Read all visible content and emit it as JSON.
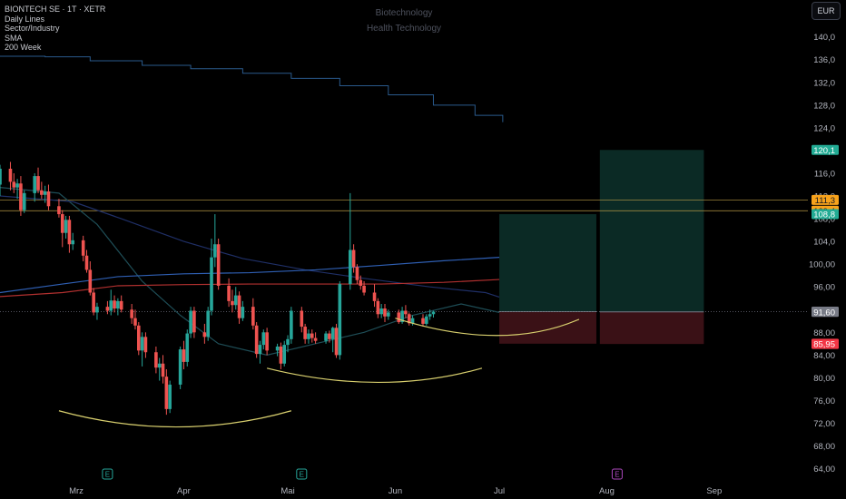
{
  "legend": {
    "symbol_line": "BIONTECH SE · 1T · XETR",
    "line2": "Daily Lines",
    "line3": "Sector/Industry",
    "line4": "SMA",
    "line5": "200 Week"
  },
  "watermark": {
    "sector": "Biotechnology",
    "industry": "Health Technology"
  },
  "currency_button": "EUR",
  "colors": {
    "bg": "#000000",
    "up": "#26a69a",
    "down": "#ef5350",
    "axis_text": "#b2b5be",
    "sma200w": "#2a5a8c",
    "blue_ma": "#2f5fb3",
    "red_ma": "#b0302f",
    "teal_ma": "#1e4d56",
    "navy_ma": "#1f2f66",
    "curve": "#d8cf6e",
    "hline": "#b89a46",
    "target": "#0b2a25",
    "stop": "#3a1116",
    "badge_teal": "#22ab94",
    "badge_orange": "#f7a21b",
    "badge_red": "#f23645",
    "badge_gray": "#787b86",
    "earn_green": "#26a69a",
    "earn_purple": "#ab47bc"
  },
  "chart_data": {
    "type": "candlestick",
    "y_ticks": [
      "140,0",
      "136,0",
      "132,0",
      "128,0",
      "124,0",
      "120,0",
      "116,0",
      "112,0",
      "108,0",
      "104,0",
      "100,00",
      "96,00",
      "92,00",
      "88,00",
      "84,00",
      "80,00",
      "76,00",
      "72,00",
      "68,00",
      "64,00"
    ],
    "y_tick_values": [
      140,
      136,
      132,
      128,
      124,
      120,
      116,
      112,
      108,
      104,
      100,
      96,
      92,
      88,
      84,
      80,
      76,
      72,
      68,
      64
    ],
    "ylim": [
      63.3,
      143.3
    ],
    "x_ticks": [
      "Mrz",
      "Apr",
      "Mai",
      "Jun",
      "Jul",
      "Aug",
      "Sep"
    ],
    "x_tick_dates": [
      "2025-03-01",
      "2025-04-01",
      "2025-05-01",
      "2025-06-01",
      "2025-07-01",
      "2025-08-01",
      "2025-09-01"
    ],
    "x_range": [
      "2025-02-07",
      "2025-09-28"
    ],
    "candles": [
      {
        "o": 114,
        "h": 117.5,
        "l": 112,
        "c": 116.8
      },
      {
        "o": 116.8,
        "h": 118,
        "l": 113,
        "c": 114.5
      },
      {
        "o": 114.5,
        "h": 116,
        "l": 112.5,
        "c": 113.5
      },
      {
        "o": 113.5,
        "h": 115,
        "l": 111.5,
        "c": 114.2
      },
      {
        "o": 114.2,
        "h": 115.5,
        "l": 108.5,
        "c": 109.5
      },
      {
        "o": 109.5,
        "h": 113,
        "l": 109,
        "c": 112.5
      },
      {
        "o": 112.5,
        "h": 116,
        "l": 111,
        "c": 115.5
      },
      {
        "o": 115.5,
        "h": 117,
        "l": 112.5,
        "c": 113
      },
      {
        "o": 113,
        "h": 114.5,
        "l": 111.5,
        "c": 112.2
      },
      {
        "o": 112.2,
        "h": 113.8,
        "l": 110.8,
        "c": 112.8
      },
      {
        "o": 112.8,
        "h": 114,
        "l": 109.5,
        "c": 110.2
      },
      {
        "o": 110.2,
        "h": 111.5,
        "l": 108.2,
        "c": 108.8
      },
      {
        "o": 108.8,
        "h": 109.5,
        "l": 103,
        "c": 105.5
      },
      {
        "o": 105.5,
        "h": 108.5,
        "l": 104.5,
        "c": 107.8
      },
      {
        "o": 107.8,
        "h": 108.5,
        "l": 102,
        "c": 103.5
      },
      {
        "o": 103.5,
        "h": 105.5,
        "l": 102.5,
        "c": 104.2
      },
      {
        "o": 104.2,
        "h": 105,
        "l": 100.5,
        "c": 101.5
      },
      {
        "o": 101.5,
        "h": 102.5,
        "l": 98.5,
        "c": 99
      },
      {
        "o": 99,
        "h": 100.5,
        "l": 94.5,
        "c": 95
      },
      {
        "o": 95,
        "h": 95.8,
        "l": 91,
        "c": 91.5
      },
      {
        "o": 91.5,
        "h": 93.2,
        "l": 90.2,
        "c": 92.5
      },
      {
        "o": 92.5,
        "h": 93.5,
        "l": 91.2,
        "c": 91.8
      },
      {
        "o": 91.8,
        "h": 95.5,
        "l": 91,
        "c": 93.6
      },
      {
        "o": 93.6,
        "h": 94.5,
        "l": 91.5,
        "c": 92.2
      },
      {
        "o": 92.2,
        "h": 94,
        "l": 91,
        "c": 93.5
      },
      {
        "o": 93.5,
        "h": 94.5,
        "l": 91.5,
        "c": 92
      },
      {
        "o": 92,
        "h": 93,
        "l": 89.5,
        "c": 90.5
      },
      {
        "o": 90.5,
        "h": 92,
        "l": 88.5,
        "c": 89.2
      },
      {
        "o": 89.2,
        "h": 89.8,
        "l": 84,
        "c": 84.8
      },
      {
        "o": 84.8,
        "h": 88,
        "l": 82,
        "c": 87.2
      },
      {
        "o": 87.2,
        "h": 88,
        "l": 83.5,
        "c": 84.5
      },
      {
        "o": 84.5,
        "h": 85.5,
        "l": 80.8,
        "c": 81.8
      },
      {
        "o": 81.8,
        "h": 83.5,
        "l": 79.5,
        "c": 82.5
      },
      {
        "o": 82.5,
        "h": 84,
        "l": 79,
        "c": 80.2
      },
      {
        "o": 80.2,
        "h": 81.5,
        "l": 73.5,
        "c": 74.5
      },
      {
        "o": 74.5,
        "h": 79.5,
        "l": 73.8,
        "c": 78.8
      },
      {
        "o": 78.8,
        "h": 85.5,
        "l": 78,
        "c": 85
      },
      {
        "o": 85,
        "h": 86.5,
        "l": 81.5,
        "c": 82.8
      },
      {
        "o": 82.8,
        "h": 88.5,
        "l": 82,
        "c": 87.8
      },
      {
        "o": 87.8,
        "h": 92.5,
        "l": 87,
        "c": 91.8
      },
      {
        "o": 91.8,
        "h": 92.5,
        "l": 87,
        "c": 88
      },
      {
        "o": 88,
        "h": 89.5,
        "l": 86,
        "c": 87.2
      },
      {
        "o": 87.2,
        "h": 92.5,
        "l": 86.5,
        "c": 91.8
      },
      {
        "o": 91.8,
        "h": 104.5,
        "l": 91,
        "c": 101.2
      },
      {
        "o": 101.2,
        "h": 108.8,
        "l": 99.5,
        "c": 103.5
      },
      {
        "o": 103.5,
        "h": 104.5,
        "l": 95.5,
        "c": 96.2
      },
      {
        "o": 96.2,
        "h": 97.5,
        "l": 92.5,
        "c": 93.5
      },
      {
        "o": 93.5,
        "h": 95.5,
        "l": 91.5,
        "c": 92.8
      },
      {
        "o": 92.8,
        "h": 96,
        "l": 92,
        "c": 94.5
      },
      {
        "o": 94.5,
        "h": 95.2,
        "l": 89.5,
        "c": 90.5
      },
      {
        "o": 90.5,
        "h": 93.5,
        "l": 90,
        "c": 92.5
      },
      {
        "o": 92.5,
        "h": 94,
        "l": 88.5,
        "c": 89.2
      },
      {
        "o": 89.2,
        "h": 89.8,
        "l": 83.5,
        "c": 84.2
      },
      {
        "o": 84.2,
        "h": 86.5,
        "l": 82.5,
        "c": 85.8
      },
      {
        "o": 85.8,
        "h": 88.5,
        "l": 85,
        "c": 88
      },
      {
        "o": 88,
        "h": 88.8,
        "l": 84,
        "c": 84.8
      },
      {
        "o": 84.8,
        "h": 86,
        "l": 83.8,
        "c": 85.5
      },
      {
        "o": 85.5,
        "h": 86.2,
        "l": 81.5,
        "c": 82.5
      },
      {
        "o": 82.5,
        "h": 86.5,
        "l": 82,
        "c": 85.8
      },
      {
        "o": 85.8,
        "h": 87.5,
        "l": 84.5,
        "c": 86.8
      },
      {
        "o": 86.8,
        "h": 92.5,
        "l": 86,
        "c": 91.8
      },
      {
        "o": 91.8,
        "h": 92.5,
        "l": 88,
        "c": 89
      },
      {
        "o": 89,
        "h": 89.5,
        "l": 86,
        "c": 86.8
      },
      {
        "o": 86.8,
        "h": 88.5,
        "l": 86,
        "c": 87.8
      },
      {
        "o": 87.8,
        "h": 88.5,
        "l": 86.2,
        "c": 87
      },
      {
        "o": 87,
        "h": 88,
        "l": 86,
        "c": 86.5
      },
      {
        "o": 86.5,
        "h": 88.2,
        "l": 86,
        "c": 87.8
      },
      {
        "o": 87.8,
        "h": 88.3,
        "l": 86.2,
        "c": 86.8
      },
      {
        "o": 86.8,
        "h": 89,
        "l": 84.5,
        "c": 88.8
      },
      {
        "o": 88.8,
        "h": 89.5,
        "l": 83.5,
        "c": 84
      },
      {
        "o": 84,
        "h": 97,
        "l": 83.2,
        "c": 96.5
      },
      {
        "o": 96.5,
        "h": 112.5,
        "l": 95.5,
        "c": 102.5
      },
      {
        "o": 102.5,
        "h": 103.5,
        "l": 98.5,
        "c": 99.5
      },
      {
        "o": 99.5,
        "h": 100,
        "l": 96.5,
        "c": 97.2
      },
      {
        "o": 97.2,
        "h": 98,
        "l": 95.5,
        "c": 96.2
      },
      {
        "o": 96.2,
        "h": 97,
        "l": 94.5,
        "c": 95
      },
      {
        "o": 95,
        "h": 96.5,
        "l": 92.5,
        "c": 93.5
      },
      {
        "o": 93.5,
        "h": 94,
        "l": 90.5,
        "c": 91.2
      },
      {
        "o": 91.2,
        "h": 93,
        "l": 90.5,
        "c": 92.2
      },
      {
        "o": 92.2,
        "h": 93,
        "l": 89.8,
        "c": 90.8
      },
      {
        "o": 90.8,
        "h": 92,
        "l": 90.2,
        "c": 91.5
      },
      {
        "o": 91.5,
        "h": 92,
        "l": 89.5,
        "c": 89.8
      },
      {
        "o": 89.8,
        "h": 92.5,
        "l": 89.5,
        "c": 91.8
      },
      {
        "o": 91.8,
        "h": 92.8,
        "l": 90.5,
        "c": 91.2
      },
      {
        "o": 91.2,
        "h": 91.5,
        "l": 89.2,
        "c": 89.6
      },
      {
        "o": 89.6,
        "h": 91,
        "l": 89.2,
        "c": 90.5
      },
      {
        "o": 90.5,
        "h": 91.2,
        "l": 89,
        "c": 89.5
      },
      {
        "o": 89.5,
        "h": 91.2,
        "l": 89.2,
        "c": 90.8
      },
      {
        "o": 90.8,
        "h": 92,
        "l": 90.2,
        "c": 91.2
      },
      {
        "o": 91.2,
        "h": 91.8,
        "l": 90.6,
        "c": 91.65
      }
    ],
    "start_date": "2025-02-07",
    "series": [
      {
        "role": "sma200w",
        "style": "step",
        "points": [
          [
            "2025-02-07",
            136.6
          ],
          [
            "2025-02-20",
            136.5
          ],
          [
            "2025-03-05",
            135.8
          ],
          [
            "2025-03-20",
            135
          ],
          [
            "2025-04-03",
            134.4
          ],
          [
            "2025-04-18",
            133.6
          ],
          [
            "2025-05-02",
            132.7
          ],
          [
            "2025-05-16",
            131.4
          ],
          [
            "2025-05-30",
            129.8
          ],
          [
            "2025-06-12",
            128
          ],
          [
            "2025-06-24",
            126.2
          ],
          [
            "2025-07-02",
            125
          ]
        ]
      },
      {
        "role": "teal_ma",
        "points": [
          [
            "2025-02-07",
            113.5
          ],
          [
            "2025-02-24",
            112.5
          ],
          [
            "2025-03-07",
            107
          ],
          [
            "2025-03-20",
            97
          ],
          [
            "2025-03-31",
            91
          ],
          [
            "2025-04-11",
            86
          ],
          [
            "2025-04-25",
            84
          ],
          [
            "2025-05-09",
            86
          ],
          [
            "2025-05-23",
            88
          ],
          [
            "2025-06-06",
            91
          ],
          [
            "2025-06-20",
            93
          ],
          [
            "2025-07-01",
            91.5
          ]
        ]
      },
      {
        "role": "navy_ma",
        "points": [
          [
            "2025-02-07",
            112
          ],
          [
            "2025-02-28",
            111
          ],
          [
            "2025-03-14",
            108
          ],
          [
            "2025-04-01",
            104
          ],
          [
            "2025-04-18",
            101
          ],
          [
            "2025-05-06",
            99
          ],
          [
            "2025-05-23",
            97.5
          ],
          [
            "2025-06-11",
            96
          ],
          [
            "2025-06-27",
            95
          ],
          [
            "2025-07-01",
            94.2
          ]
        ]
      },
      {
        "role": "blue_ma",
        "points": [
          [
            "2025-02-07",
            95
          ],
          [
            "2025-02-25",
            96.5
          ],
          [
            "2025-03-13",
            97.8
          ],
          [
            "2025-04-01",
            98.3
          ],
          [
            "2025-04-20",
            98.5
          ],
          [
            "2025-05-09",
            99
          ],
          [
            "2025-05-28",
            99.8
          ],
          [
            "2025-06-15",
            100.6
          ],
          [
            "2025-07-01",
            101.2
          ]
        ]
      },
      {
        "role": "red_ma",
        "points": [
          [
            "2025-02-07",
            94.3
          ],
          [
            "2025-02-25",
            95
          ],
          [
            "2025-03-13",
            96.2
          ],
          [
            "2025-04-01",
            96.4
          ],
          [
            "2025-04-20",
            96.5
          ],
          [
            "2025-05-09",
            96.5
          ],
          [
            "2025-05-28",
            96.5
          ],
          [
            "2025-06-15",
            96.8
          ],
          [
            "2025-07-01",
            97.3
          ]
        ]
      }
    ],
    "curves": [
      {
        "p0": [
          "2025-02-24",
          74.2
        ],
        "c": [
          "2025-03-30",
          68.5
        ],
        "p1": [
          "2025-05-02",
          74.2
        ]
      },
      {
        "p0": [
          "2025-04-25",
          81.7
        ],
        "c": [
          "2025-05-28",
          76.7
        ],
        "p1": [
          "2025-06-26",
          81.7
        ]
      },
      {
        "p0": [
          "2025-06-01",
          90.5
        ],
        "c": [
          "2025-07-02",
          84.5
        ],
        "p1": [
          "2025-07-24",
          90.3
        ]
      }
    ],
    "hlines": [
      111.3,
      109.4
    ],
    "dotted_price": 91.65,
    "positions": [
      {
        "from": "2025-07-01",
        "to": "2025-07-29",
        "entry": 91.65,
        "target": 108.8,
        "stop": 86.0
      },
      {
        "from": "2025-07-30",
        "to": "2025-08-29",
        "entry": 91.6,
        "target": 120.1,
        "stop": 85.95
      }
    ],
    "price_badges": [
      {
        "label": "120,1",
        "value": 120.1,
        "color": "badge_teal"
      },
      {
        "label": "111,3",
        "value": 111.3,
        "color": "badge_orange"
      },
      {
        "label": "109,4",
        "value": 109.4,
        "color": "badge_orange"
      },
      {
        "label": "108,8",
        "value": 108.8,
        "color": "badge_teal"
      },
      {
        "label": "91,65",
        "value": 91.65,
        "color": "badge_gray"
      },
      {
        "label": "91,60",
        "value": 91.6,
        "color": "badge_gray"
      },
      {
        "label": "86,00",
        "value": 86.0,
        "color": "badge_red"
      },
      {
        "label": "85,95",
        "value": 85.95,
        "color": "badge_red"
      }
    ],
    "earnings_markers": [
      {
        "date": "2025-03-10",
        "label": "E",
        "color": "earn_green"
      },
      {
        "date": "2025-05-05",
        "label": "E",
        "color": "earn_green"
      },
      {
        "date": "2025-08-04",
        "label": "E",
        "color": "earn_purple"
      }
    ]
  }
}
